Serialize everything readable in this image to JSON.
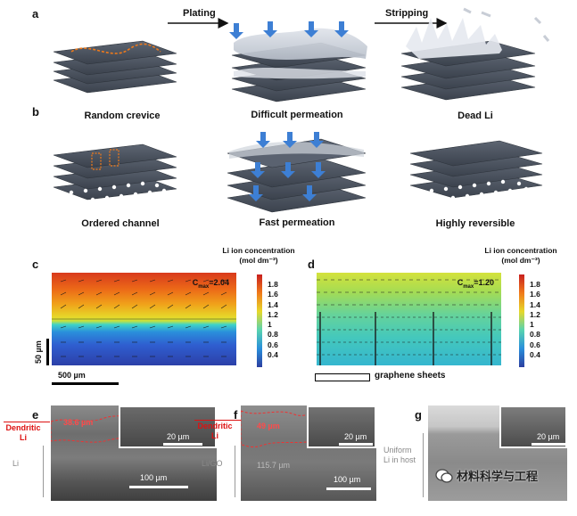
{
  "panels": {
    "a": "a",
    "b": "b",
    "c": "c",
    "d": "d",
    "e": "e",
    "f": "f",
    "g": "g"
  },
  "schematic": {
    "plating_label": "Plating",
    "stripping_label": "Stripping",
    "row_a": [
      "Random crevice",
      "Difficult permeation",
      "Dead Li"
    ],
    "row_b": [
      "Ordered channel",
      "Fast permeation",
      "Highly reversible"
    ]
  },
  "simulation": {
    "colorbar_title_line1": "Li ion concentration",
    "colorbar_title_line2": "(mol dm⁻³)",
    "ticks": [
      "1.8",
      "1.6",
      "1.4",
      "1.2",
      "1",
      "0.8",
      "0.6",
      "0.4"
    ],
    "c_max_label": "C",
    "c_max_sub": "max",
    "c_value": "=2.04",
    "d_value": "=1.20",
    "y_scale": "50 µm",
    "x_scale": "500 µm",
    "legend_graphene": "graphene sheets"
  },
  "sem": {
    "e": {
      "red_label": "Dendritic\nLi",
      "grey_label": "Li",
      "thickness": "38.6 µm",
      "inset_scale": "20 µm",
      "main_scale": "100 µm"
    },
    "f": {
      "red_label": "Dendritic\nLi",
      "grey_label": "Li/GO",
      "thickness": "49 µm",
      "grey_thickness": "115.7 µm",
      "inset_scale": "20 µm",
      "main_scale": "100 µm"
    },
    "g": {
      "grey_label": "Uniform\nLi in host",
      "inset_scale": "20 µm"
    }
  },
  "watermark": "材料科学与工程"
}
